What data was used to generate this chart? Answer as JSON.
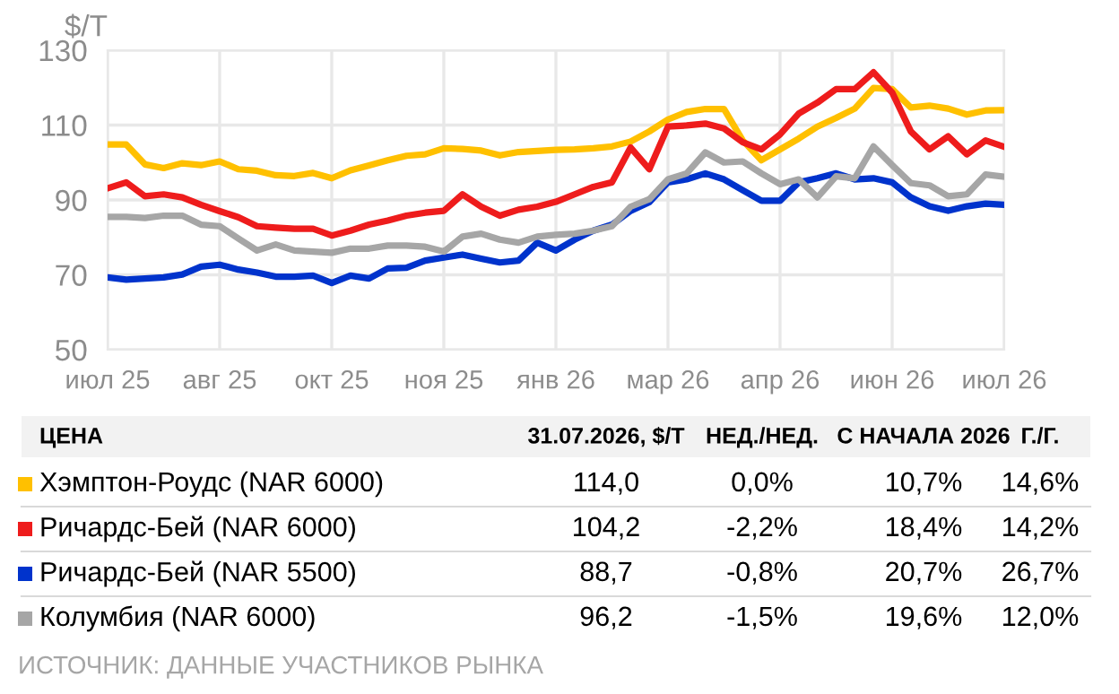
{
  "chart_data": {
    "type": "line",
    "ylabel": "$/T",
    "categories": [
      "июл 25",
      null,
      null,
      null,
      null,
      null,
      "авг 25",
      null,
      null,
      null,
      null,
      null,
      "окт 25",
      null,
      null,
      null,
      null,
      null,
      "ноя 25",
      null,
      null,
      null,
      null,
      null,
      "янв 26",
      null,
      null,
      null,
      null,
      null,
      "мар 26",
      null,
      null,
      null,
      null,
      null,
      "апр 26",
      null,
      null,
      null,
      null,
      null,
      "июн 26",
      null,
      null,
      null,
      null,
      null,
      "июл 26"
    ],
    "series": [
      {
        "name": "Хэмптон-Роудс (NAR 6000)",
        "color": "#ffc000",
        "values": [
          104.8,
          104.8,
          99.5,
          98.5,
          99.8,
          99.3,
          100.3,
          98.2,
          97.8,
          96.6,
          96.4,
          97.2,
          95.8,
          97.9,
          99.2,
          100.6,
          101.8,
          102.2,
          103.8,
          103.6,
          103.2,
          101.9,
          102.8,
          103.1,
          103.4,
          103.5,
          103.8,
          104.3,
          105.6,
          108.3,
          111.5,
          113.5,
          114.3,
          114.3,
          105.9,
          100.6,
          103.5,
          106.4,
          109.6,
          111.9,
          114.4,
          119.9,
          119.6,
          114.7,
          115.2,
          114.4,
          112.8,
          113.9,
          114.0
        ]
      },
      {
        "name": "Ричардс-Бей (NAR 6000)",
        "color": "#ee1c1c",
        "values": [
          93.1,
          94.7,
          91,
          91.5,
          90.7,
          88.7,
          87,
          85.4,
          83,
          82.6,
          82.3,
          82.3,
          80.5,
          81.8,
          83.4,
          84.5,
          85.8,
          86.6,
          87.1,
          91.5,
          88.2,
          85.8,
          87.4,
          88.2,
          89.5,
          91.5,
          93.5,
          94.7,
          104,
          98.2,
          109.6,
          109.9,
          110.4,
          109.1,
          105.4,
          103.5,
          107.5,
          113.1,
          116,
          119.6,
          119.6,
          124.1,
          118.7,
          108.3,
          103.5,
          107,
          102.2,
          105.9,
          104.2
        ]
      },
      {
        "name": "Ричардс-Бей (NAR 5500)",
        "color": "#0033cc",
        "values": [
          69.3,
          68.7,
          69,
          69.3,
          70.1,
          72.2,
          72.7,
          71.4,
          70.6,
          69.5,
          69.5,
          69.8,
          67.8,
          69.8,
          69,
          71.7,
          71.9,
          73.8,
          74.6,
          75.4,
          74.3,
          73.3,
          73.8,
          78.6,
          76.5,
          79.4,
          81.8,
          83.4,
          87.1,
          89.4,
          94.7,
          95.5,
          97.1,
          95.5,
          92.6,
          89.8,
          89.8,
          94.7,
          95.8,
          97.1,
          95.5,
          95.8,
          94.7,
          90.7,
          88.3,
          87.1,
          88.3,
          89,
          88.7
        ]
      },
      {
        "name": "Колумбия (NAR 6000)",
        "color": "#a6a6a6",
        "values": [
          85.5,
          85.5,
          85.2,
          85.8,
          85.8,
          83.4,
          83,
          79.7,
          76.5,
          78.1,
          76.5,
          76.2,
          75.9,
          77,
          77,
          77.8,
          77.8,
          77.5,
          76.2,
          80.2,
          81,
          79.4,
          78.6,
          80.2,
          80.7,
          81,
          81.8,
          83,
          88.2,
          90.2,
          95.5,
          97.1,
          102.7,
          100,
          100.3,
          97.1,
          94.2,
          95.5,
          90.7,
          96.3,
          95.8,
          104.3,
          99.3,
          94.5,
          93.9,
          91,
          91.5,
          96.8,
          96.2
        ]
      }
    ],
    "ylim": [
      50,
      130
    ],
    "yticks": [
      50,
      70,
      90,
      110,
      130
    ],
    "grid": true,
    "legend": "bottom",
    "annotations": [
      "ЦЕНА",
      "31.07.2026, $/T",
      "НЕД./НЕД.",
      "С НАЧАЛА 2026",
      "Г./Г.",
      "114,0",
      "0,0%",
      "10,7%",
      "14,6%",
      "104,2",
      "-2,2%",
      "18,4%",
      "14,2%",
      "88,7",
      "-0,8%",
      "20,7%",
      "26,7%",
      "96,2",
      "-1,5%",
      "19,6%",
      "12,0%",
      "ИСТОЧНИК: ДАННЫЕ УЧАСТНИКОВ РЫНКА"
    ]
  }
}
